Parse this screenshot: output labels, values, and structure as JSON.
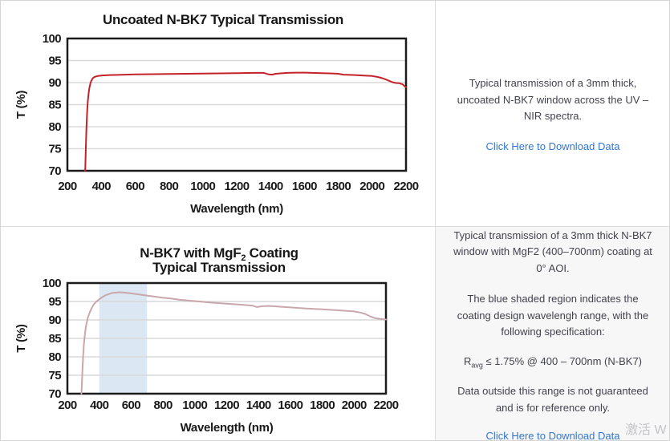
{
  "colors": {
    "uncoated_line": "#c4222a",
    "coated_line": "#c9a7ac",
    "band_fill": "#dbe8f4",
    "grid": "#d9d9d9",
    "plot_border": "#1b1b1b",
    "link": "#3276d2",
    "body_text": "#42424c",
    "panel_bg": "#f7f7f8"
  },
  "panels": {
    "top_right": {
      "description": "Typical transmission of a 3mm thick, uncoated N-BK7 window across the UV – NIR spectra.",
      "link_label": "Click Here to Download Data"
    },
    "bottom_right": {
      "p1": "Typical transmission of a 3mm thick N-BK7 window with MgF2 (400–700nm) coating at 0° AOI.",
      "p2": "The blue shaded region indicates the coating design wavelengh range, with the following specification:",
      "spec_pre": "R",
      "spec_sub": "avg",
      "spec_post": " ≤ 1.75% @ 400 – 700nm (N-BK7)",
      "p3": "Data outside this range is not guaranteed and is for reference only.",
      "link_label": "Click Here to Download Data"
    }
  },
  "watermark": {
    "text": "激活 W"
  },
  "chart_data": [
    {
      "type": "line",
      "title": "Uncoated N-BK7 Typical Transmission",
      "xlabel": "Wavelength (nm)",
      "ylabel": "T (%)",
      "xlim": [
        200,
        2200
      ],
      "ylim": [
        70,
        100
      ],
      "xticks": [
        200,
        400,
        600,
        800,
        1000,
        1200,
        1400,
        1600,
        1800,
        2000,
        2200
      ],
      "yticks": [
        70,
        75,
        80,
        85,
        90,
        95,
        100
      ],
      "grid": true,
      "legend": false,
      "series": [
        {
          "key": "uncoated-n-bk7",
          "name": "Uncoated N-BK7",
          "color": "#c4222a",
          "points": [
            [
              305,
              70
            ],
            [
              308,
              74
            ],
            [
              312,
              79
            ],
            [
              316,
              83
            ],
            [
              320,
              85.5
            ],
            [
              325,
              87.5
            ],
            [
              330,
              88.8
            ],
            [
              335,
              89.7
            ],
            [
              340,
              90.3
            ],
            [
              350,
              91
            ],
            [
              360,
              91.3
            ],
            [
              380,
              91.5
            ],
            [
              400,
              91.6
            ],
            [
              450,
              91.7
            ],
            [
              500,
              91.75
            ],
            [
              600,
              91.85
            ],
            [
              700,
              91.9
            ],
            [
              800,
              91.95
            ],
            [
              900,
              92
            ],
            [
              1000,
              92.05
            ],
            [
              1100,
              92.1
            ],
            [
              1200,
              92.15
            ],
            [
              1300,
              92.2
            ],
            [
              1360,
              92.2
            ],
            [
              1390,
              91.85
            ],
            [
              1410,
              91.8
            ],
            [
              1430,
              92
            ],
            [
              1460,
              92.1
            ],
            [
              1500,
              92.2
            ],
            [
              1550,
              92.25
            ],
            [
              1600,
              92.25
            ],
            [
              1650,
              92.2
            ],
            [
              1700,
              92.15
            ],
            [
              1750,
              92.1
            ],
            [
              1800,
              92
            ],
            [
              1830,
              91.8
            ],
            [
              1870,
              91.75
            ],
            [
              1900,
              91.7
            ],
            [
              1950,
              91.6
            ],
            [
              2000,
              91.5
            ],
            [
              2030,
              91.3
            ],
            [
              2060,
              91
            ],
            [
              2080,
              90.7
            ],
            [
              2100,
              90.4
            ],
            [
              2120,
              90.1
            ],
            [
              2140,
              89.9
            ],
            [
              2160,
              89.85
            ],
            [
              2180,
              89.6
            ],
            [
              2200,
              88.9
            ]
          ]
        }
      ]
    },
    {
      "type": "line",
      "title": "N-BK7 with MgF2 Coating Typical Transmission",
      "title_line1_pre": "N-BK7 with MgF",
      "title_line1_sub": "2",
      "title_line1_post": " Coating",
      "title_line2": "Typical Transmission",
      "xlabel": "Wavelength (nm)",
      "ylabel": "T (%)",
      "xlim": [
        200,
        2200
      ],
      "ylim": [
        70,
        100
      ],
      "xticks": [
        200,
        400,
        600,
        800,
        1000,
        1200,
        1400,
        1600,
        1800,
        2000,
        2200
      ],
      "yticks": [
        70,
        75,
        80,
        85,
        90,
        95,
        100
      ],
      "grid": true,
      "legend": false,
      "band": {
        "from": 400,
        "to": 700,
        "color": "#dbe8f4",
        "meaning": "coating design wavelength range"
      },
      "series": [
        {
          "key": "mgf2-coated-n-bk7",
          "name": "N-BK7 with MgF2 Coating",
          "color": "#c9a7ac",
          "points": [
            [
              288,
              70
            ],
            [
              292,
              74
            ],
            [
              296,
              78
            ],
            [
              300,
              81
            ],
            [
              305,
              84
            ],
            [
              310,
              86
            ],
            [
              315,
              87.8
            ],
            [
              320,
              89
            ],
            [
              330,
              90.8
            ],
            [
              340,
              92
            ],
            [
              350,
              93
            ],
            [
              365,
              94.2
            ],
            [
              380,
              94.9
            ],
            [
              400,
              95.6
            ],
            [
              420,
              96.2
            ],
            [
              440,
              96.7
            ],
            [
              460,
              97
            ],
            [
              480,
              97.3
            ],
            [
              500,
              97.4
            ],
            [
              530,
              97.5
            ],
            [
              560,
              97.4
            ],
            [
              600,
              97.2
            ],
            [
              650,
              96.9
            ],
            [
              700,
              96.6
            ],
            [
              750,
              96.3
            ],
            [
              800,
              96
            ],
            [
              850,
              95.8
            ],
            [
              900,
              95.5
            ],
            [
              950,
              95.3
            ],
            [
              1000,
              95.1
            ],
            [
              1100,
              94.7
            ],
            [
              1200,
              94.4
            ],
            [
              1300,
              94.1
            ],
            [
              1360,
              93.9
            ],
            [
              1390,
              93.5
            ],
            [
              1420,
              93.7
            ],
            [
              1460,
              93.8
            ],
            [
              1500,
              93.7
            ],
            [
              1600,
              93.4
            ],
            [
              1700,
              93.1
            ],
            [
              1800,
              92.9
            ],
            [
              1900,
              92.6
            ],
            [
              2000,
              92.3
            ],
            [
              2040,
              92
            ],
            [
              2070,
              91.6
            ],
            [
              2100,
              91
            ],
            [
              2130,
              90.5
            ],
            [
              2160,
              90.3
            ],
            [
              2200,
              90.1
            ]
          ]
        }
      ]
    }
  ]
}
